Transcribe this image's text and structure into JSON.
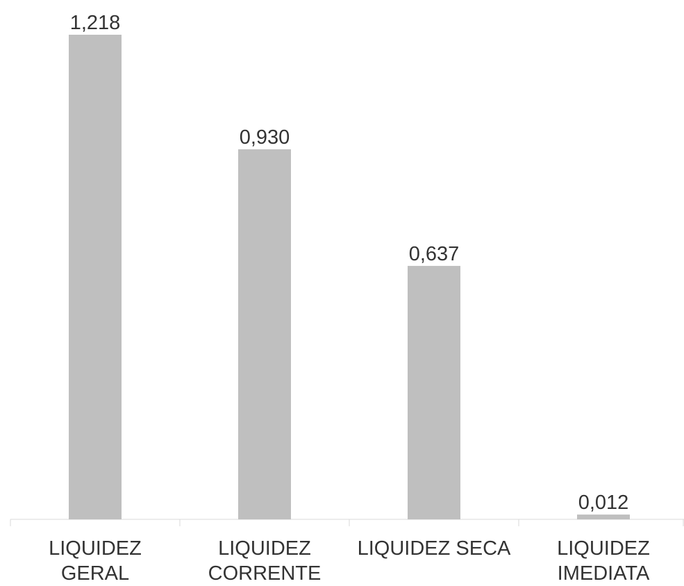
{
  "chart_data": {
    "type": "bar",
    "categories": [
      "LIQUIDEZ GERAL",
      "LIQUIDEZ CORRENTE",
      "LIQUIDEZ SECA",
      "LIQUIDEZ IMEDIATA"
    ],
    "values": [
      1.218,
      0.93,
      0.637,
      0.012
    ],
    "value_labels": [
      "1,218",
      "0,930",
      "0,637",
      "0,012"
    ],
    "color": "#bfbfbf"
  }
}
